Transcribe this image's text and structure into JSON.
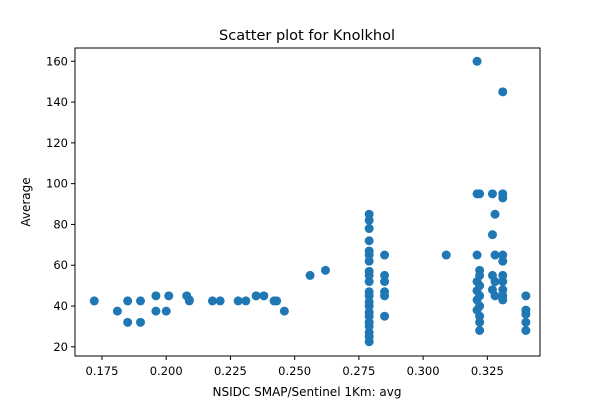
{
  "chart_data": {
    "type": "scatter",
    "title": "Scatter plot for Knolkhol",
    "xlabel": "NSIDC SMAP/Sentinel 1Km: avg",
    "ylabel": "Average",
    "xlim": [
      0.1645,
      0.3455
    ],
    "ylim": [
      15.5,
      166.5
    ],
    "x_ticks": [
      0.175,
      0.2,
      0.225,
      0.25,
      0.275,
      0.3,
      0.325
    ],
    "x_tick_labels": [
      "0.175",
      "0.200",
      "0.225",
      "0.250",
      "0.275",
      "0.300",
      "0.325"
    ],
    "y_ticks": [
      20,
      40,
      60,
      80,
      100,
      120,
      140,
      160
    ],
    "y_tick_labels": [
      "20",
      "40",
      "60",
      "80",
      "100",
      "120",
      "140",
      "160"
    ],
    "grid": false,
    "marker_color": "#1f77b4",
    "points": [
      [
        0.172,
        42.5
      ],
      [
        0.181,
        37.5
      ],
      [
        0.185,
        42.5
      ],
      [
        0.185,
        32.0
      ],
      [
        0.19,
        42.5
      ],
      [
        0.19,
        32.0
      ],
      [
        0.196,
        45.0
      ],
      [
        0.196,
        37.5
      ],
      [
        0.2,
        37.5
      ],
      [
        0.201,
        45.0
      ],
      [
        0.208,
        45.0
      ],
      [
        0.209,
        43.0
      ],
      [
        0.209,
        42.5
      ],
      [
        0.218,
        42.5
      ],
      [
        0.221,
        42.5
      ],
      [
        0.228,
        42.5
      ],
      [
        0.231,
        42.5
      ],
      [
        0.235,
        45.0
      ],
      [
        0.238,
        45.0
      ],
      [
        0.242,
        42.5
      ],
      [
        0.243,
        42.5
      ],
      [
        0.246,
        37.5
      ],
      [
        0.256,
        55.0
      ],
      [
        0.262,
        57.5
      ],
      [
        0.279,
        85.0
      ],
      [
        0.279,
        82.0
      ],
      [
        0.279,
        78.0
      ],
      [
        0.279,
        72.0
      ],
      [
        0.279,
        67.0
      ],
      [
        0.279,
        65.0
      ],
      [
        0.279,
        62.0
      ],
      [
        0.279,
        57.0
      ],
      [
        0.279,
        55.0
      ],
      [
        0.279,
        52.0
      ],
      [
        0.279,
        47.0
      ],
      [
        0.279,
        45.0
      ],
      [
        0.279,
        42.0
      ],
      [
        0.279,
        40.0
      ],
      [
        0.279,
        37.0
      ],
      [
        0.279,
        35.0
      ],
      [
        0.279,
        32.0
      ],
      [
        0.279,
        30.0
      ],
      [
        0.279,
        27.0
      ],
      [
        0.279,
        25.0
      ],
      [
        0.279,
        22.5
      ],
      [
        0.285,
        65.0
      ],
      [
        0.285,
        55.0
      ],
      [
        0.285,
        52.0
      ],
      [
        0.285,
        47.0
      ],
      [
        0.285,
        45.0
      ],
      [
        0.285,
        35.0
      ],
      [
        0.309,
        65.0
      ],
      [
        0.321,
        160.0
      ],
      [
        0.321,
        95.0
      ],
      [
        0.322,
        95.0
      ],
      [
        0.321,
        65.0
      ],
      [
        0.322,
        57.5
      ],
      [
        0.322,
        55.0
      ],
      [
        0.321,
        52.0
      ],
      [
        0.322,
        50.0
      ],
      [
        0.321,
        47.5
      ],
      [
        0.322,
        45.0
      ],
      [
        0.321,
        43.0
      ],
      [
        0.322,
        40.0
      ],
      [
        0.321,
        38.0
      ],
      [
        0.322,
        35.0
      ],
      [
        0.322,
        32.0
      ],
      [
        0.322,
        28.0
      ],
      [
        0.327,
        95.0
      ],
      [
        0.328,
        85.0
      ],
      [
        0.327,
        75.0
      ],
      [
        0.328,
        65.0
      ],
      [
        0.327,
        55.0
      ],
      [
        0.328,
        52.0
      ],
      [
        0.327,
        48.0
      ],
      [
        0.328,
        45.0
      ],
      [
        0.331,
        145.0
      ],
      [
        0.331,
        95.0
      ],
      [
        0.331,
        93.0
      ],
      [
        0.331,
        65.0
      ],
      [
        0.331,
        62.0
      ],
      [
        0.331,
        55.0
      ],
      [
        0.331,
        52.0
      ],
      [
        0.331,
        48.0
      ],
      [
        0.331,
        45.0
      ],
      [
        0.331,
        43.0
      ],
      [
        0.34,
        45.0
      ],
      [
        0.34,
        38.0
      ],
      [
        0.34,
        36.0
      ],
      [
        0.34,
        32.0
      ],
      [
        0.34,
        28.0
      ]
    ]
  }
}
